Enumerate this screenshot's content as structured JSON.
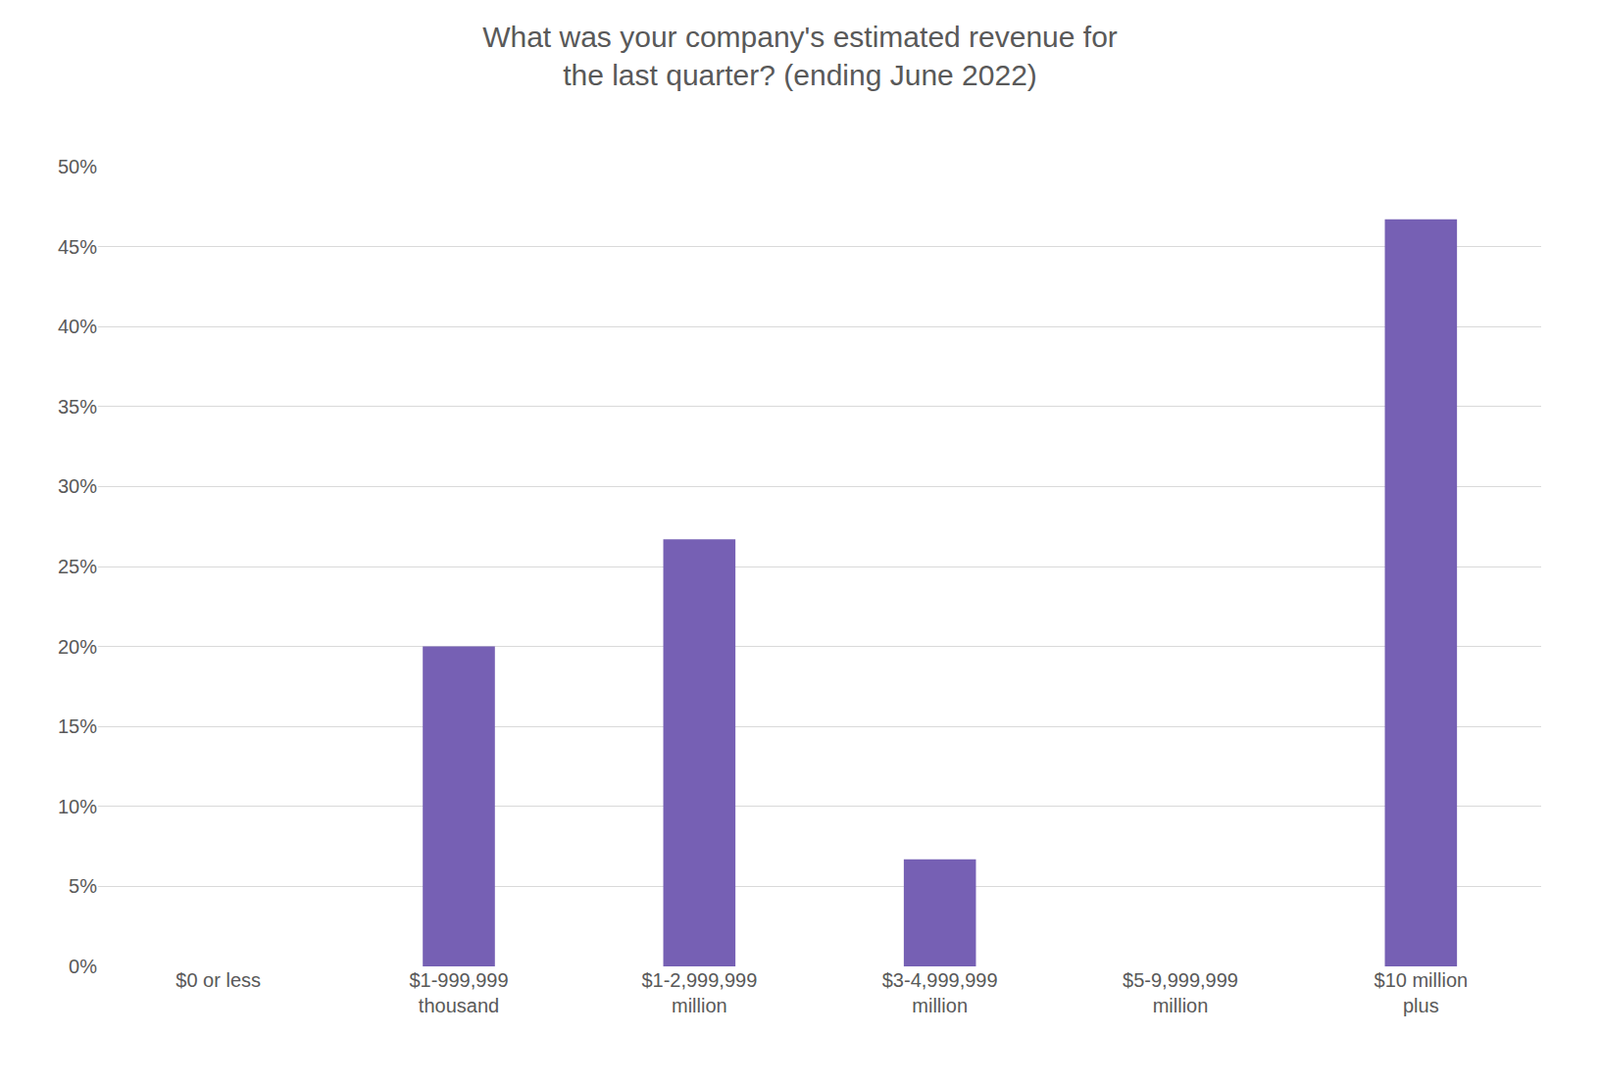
{
  "chart_data": {
    "type": "bar",
    "title": "What was your company's estimated revenue for the last quarter? (ending June 2022)",
    "categories": [
      "$0 or less",
      "$1-999,999 thousand",
      "$1-2,999,999 million",
      "$3-4,999,999 million",
      "$5-9,999,999 million",
      "$10 million plus"
    ],
    "values": [
      0,
      20,
      26.7,
      6.7,
      0,
      46.7
    ],
    "color": "#7660b4",
    "ylim": [
      0,
      50
    ],
    "yticks": [
      {
        "value": 0,
        "label": "0%"
      },
      {
        "value": 5,
        "label": "5%"
      },
      {
        "value": 10,
        "label": "10%"
      },
      {
        "value": 15,
        "label": "15%"
      },
      {
        "value": 20,
        "label": "20%"
      },
      {
        "value": 25,
        "label": "25%"
      },
      {
        "value": 30,
        "label": "30%"
      },
      {
        "value": 35,
        "label": "35%"
      },
      {
        "value": 40,
        "label": "40%"
      },
      {
        "value": 45,
        "label": "45%"
      },
      {
        "value": 50,
        "label": "50%"
      }
    ],
    "grid": true
  }
}
